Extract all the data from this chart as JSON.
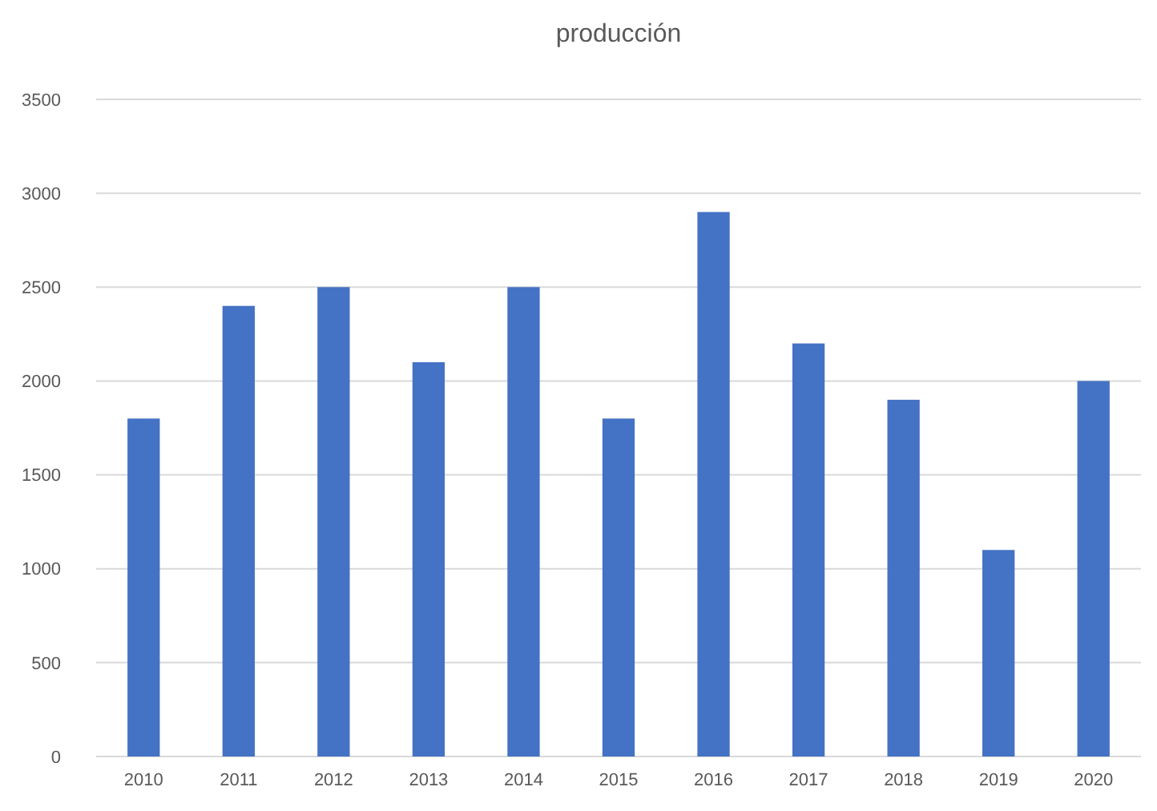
{
  "chart_data": {
    "type": "bar",
    "title": "producción",
    "categories": [
      "2010",
      "2011",
      "2012",
      "2013",
      "2014",
      "2015",
      "2016",
      "2017",
      "2018",
      "2019",
      "2020"
    ],
    "values": [
      1800,
      2400,
      2500,
      2100,
      2500,
      1800,
      2900,
      2200,
      1900,
      1100,
      2000
    ],
    "color": "#4472c4",
    "ylim": [
      0,
      3500
    ],
    "yticks": [
      0,
      500,
      1000,
      1500,
      2000,
      2500,
      3000,
      3500
    ],
    "grid": "y"
  }
}
